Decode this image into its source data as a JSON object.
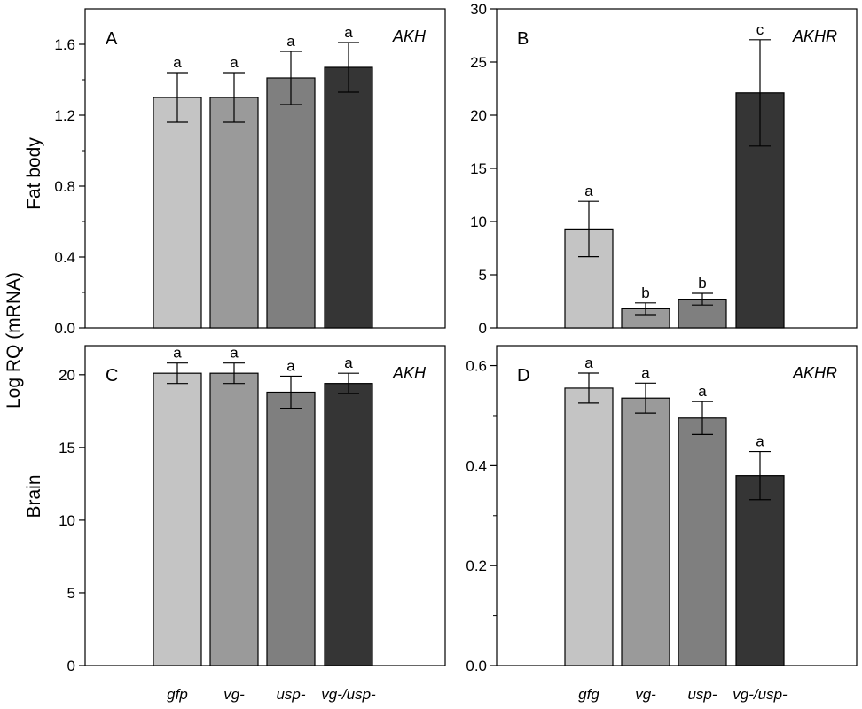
{
  "figure": {
    "ylabel": "Log RQ (mRNA)",
    "row_labels": [
      "Fat body",
      "Brain"
    ],
    "bar_colors": [
      "#c4c4c4",
      "#9a9a9a",
      "#7f7f7f",
      "#353535"
    ]
  },
  "chart_data": [
    {
      "type": "bar",
      "panel": "A",
      "gene": "AKH",
      "tissue": "Fat body",
      "categories": [
        "gfp",
        "vg-",
        "usp-",
        "vg-/usp-"
      ],
      "category_labels_shown": false,
      "values": [
        1.3,
        1.3,
        1.41,
        1.47
      ],
      "errors": [
        0.14,
        0.14,
        0.15,
        0.14
      ],
      "significance": [
        "a",
        "a",
        "a",
        "a"
      ],
      "ylim": [
        0,
        1.8
      ],
      "yticks": [
        0.0,
        0.4,
        0.8,
        1.2,
        1.6
      ],
      "ytick_labels": [
        "0.0",
        "0.4",
        "0.8",
        "1.2",
        "1.6"
      ],
      "minor_ticks": [
        0.2,
        0.6,
        1.0,
        1.4
      ],
      "grid": false
    },
    {
      "type": "bar",
      "panel": "B",
      "gene": "AKHR",
      "tissue": "Fat body",
      "categories": [
        "gfg",
        "vg-",
        "usp-",
        "vg-/usp-"
      ],
      "category_labels_shown": false,
      "values": [
        9.3,
        1.8,
        2.7,
        22.1
      ],
      "errors": [
        2.6,
        0.55,
        0.55,
        5.0
      ],
      "significance": [
        "a",
        "b",
        "b",
        "c"
      ],
      "ylim": [
        0,
        30
      ],
      "yticks": [
        0,
        5,
        10,
        15,
        20,
        25,
        30
      ],
      "ytick_labels": [
        "0",
        "5",
        "10",
        "15",
        "20",
        "25",
        "30"
      ],
      "minor_ticks": [],
      "grid": false
    },
    {
      "type": "bar",
      "panel": "C",
      "gene": "AKH",
      "tissue": "Brain",
      "categories": [
        "gfp",
        "vg-",
        "usp-",
        "vg-/usp-"
      ],
      "category_labels_shown": true,
      "values": [
        20.1,
        20.1,
        18.8,
        19.4
      ],
      "errors": [
        0.7,
        0.7,
        1.1,
        0.7
      ],
      "significance": [
        "a",
        "a",
        "a",
        "a"
      ],
      "ylim": [
        0,
        22
      ],
      "yticks": [
        0,
        5,
        10,
        15,
        20
      ],
      "ytick_labels": [
        "0",
        "5",
        "10",
        "15",
        "20"
      ],
      "minor_ticks": [],
      "grid": false
    },
    {
      "type": "bar",
      "panel": "D",
      "gene": "AKHR",
      "tissue": "Brain",
      "categories": [
        "gfg",
        "vg-",
        "usp-",
        "vg-/usp-"
      ],
      "category_labels_shown": true,
      "values": [
        0.555,
        0.535,
        0.495,
        0.38
      ],
      "errors": [
        0.03,
        0.03,
        0.033,
        0.048
      ],
      "significance": [
        "a",
        "a",
        "a",
        "a"
      ],
      "ylim": [
        0,
        0.64
      ],
      "yticks": [
        0.0,
        0.2,
        0.4,
        0.6
      ],
      "ytick_labels": [
        "0.0",
        "0.2",
        "0.4",
        "0.6"
      ],
      "minor_ticks": [
        0.1,
        0.3,
        0.5
      ],
      "grid": false
    }
  ]
}
